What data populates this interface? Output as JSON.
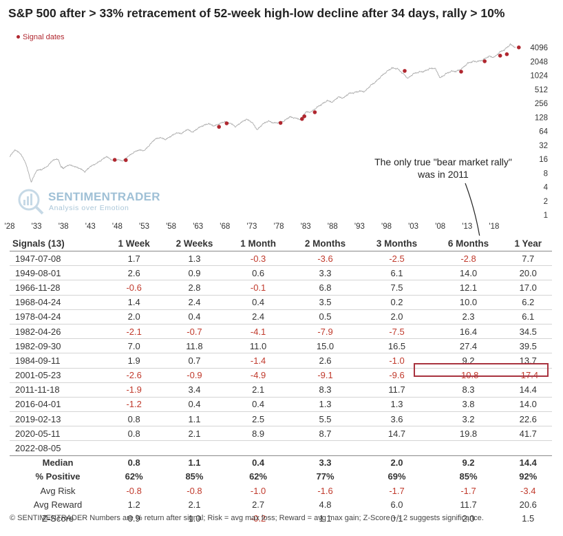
{
  "title": "S&P 500 after  > 33% retracement of 52-week high-low decline after 34 days, rally > 10%",
  "legend": {
    "label": "Signal dates",
    "color": "#b0272f"
  },
  "watermark": {
    "name": "SENTIMENTRADER",
    "tagline": "Analysis over Emotion"
  },
  "annotation": {
    "line1": "The only true \"bear market rally\"",
    "line2": "was in 2011"
  },
  "chart_data": {
    "type": "line",
    "title": "S&P 500 after  > 33% retracement of 52-week high-low decline after 34 days, rally > 10%",
    "y_scale": "log2",
    "ylim": [
      1,
      6000
    ],
    "y_ticks": [
      1,
      2,
      4,
      8,
      16,
      32,
      64,
      128,
      256,
      512,
      1024,
      2048,
      4096
    ],
    "xlim": [
      1928,
      2023
    ],
    "x_tick_values": [
      1928,
      1933,
      1938,
      1943,
      1948,
      1953,
      1958,
      1963,
      1968,
      1973,
      1978,
      1983,
      1988,
      1993,
      1998,
      2003,
      2008,
      2013,
      2018
    ],
    "x_tick_labels": [
      "'28",
      "'33",
      "'38",
      "'43",
      "'48",
      "'53",
      "'58",
      "'63",
      "'68",
      "'73",
      "'78",
      "'83",
      "'88",
      "'93",
      "'98",
      "'03",
      "'08",
      "'13",
      "'18"
    ],
    "series": [
      {
        "color": "#aaaaaa",
        "points": [
          [
            1928,
            18
          ],
          [
            1929,
            25
          ],
          [
            1930,
            21
          ],
          [
            1931,
            13
          ],
          [
            1932,
            5
          ],
          [
            1933,
            9
          ],
          [
            1934,
            9.5
          ],
          [
            1935,
            11
          ],
          [
            1936,
            15
          ],
          [
            1937,
            16
          ],
          [
            1937.5,
            11
          ],
          [
            1938,
            10
          ],
          [
            1939,
            12
          ],
          [
            1940,
            11
          ],
          [
            1941,
            10
          ],
          [
            1942,
            8.5
          ],
          [
            1943,
            11
          ],
          [
            1944,
            12.5
          ],
          [
            1945,
            15
          ],
          [
            1946,
            18
          ],
          [
            1947,
            15
          ],
          [
            1948,
            15.5
          ],
          [
            1949,
            14.5
          ],
          [
            1950,
            18
          ],
          [
            1951,
            22
          ],
          [
            1952,
            25
          ],
          [
            1953,
            24
          ],
          [
            1954,
            32
          ],
          [
            1955,
            43
          ],
          [
            1956,
            46
          ],
          [
            1957,
            42
          ],
          [
            1958,
            50
          ],
          [
            1959,
            58
          ],
          [
            1960,
            57
          ],
          [
            1961,
            70
          ],
          [
            1962,
            60
          ],
          [
            1963,
            74
          ],
          [
            1964,
            85
          ],
          [
            1965,
            92
          ],
          [
            1966,
            82
          ],
          [
            1967,
            93
          ],
          [
            1968,
            102
          ],
          [
            1969,
            94
          ],
          [
            1970,
            80
          ],
          [
            1971,
            98
          ],
          [
            1972,
            115
          ],
          [
            1973,
            100
          ],
          [
            1974,
            68
          ],
          [
            1975,
            90
          ],
          [
            1976,
            106
          ],
          [
            1977,
            96
          ],
          [
            1978,
            97
          ],
          [
            1979,
            106
          ],
          [
            1980,
            130
          ],
          [
            1981,
            122
          ],
          [
            1982,
            115
          ],
          [
            1983,
            165
          ],
          [
            1984,
            165
          ],
          [
            1985,
            205
          ],
          [
            1986,
            245
          ],
          [
            1987,
            290
          ],
          [
            1988,
            270
          ],
          [
            1989,
            350
          ],
          [
            1990,
            330
          ],
          [
            1991,
            415
          ],
          [
            1992,
            435
          ],
          [
            1993,
            465
          ],
          [
            1994,
            460
          ],
          [
            1995,
            615
          ],
          [
            1996,
            740
          ],
          [
            1997,
            970
          ],
          [
            1998,
            1230
          ],
          [
            1999,
            1470
          ],
          [
            2000,
            1430
          ],
          [
            2001,
            1150
          ],
          [
            2002,
            880
          ],
          [
            2003,
            1110
          ],
          [
            2004,
            1210
          ],
          [
            2005,
            1250
          ],
          [
            2006,
            1420
          ],
          [
            2007,
            1480
          ],
          [
            2008,
            900
          ],
          [
            2009,
            1100
          ],
          [
            2010,
            1260
          ],
          [
            2011,
            1260
          ],
          [
            2012,
            1420
          ],
          [
            2013,
            1850
          ],
          [
            2014,
            2060
          ],
          [
            2015,
            2040
          ],
          [
            2016,
            2240
          ],
          [
            2017,
            2670
          ],
          [
            2018,
            2510
          ],
          [
            2019,
            3230
          ],
          [
            2020,
            3750
          ],
          [
            2021,
            4760
          ],
          [
            2022,
            4150
          ]
        ]
      }
    ],
    "signal_points": [
      [
        1947.52,
        15.5
      ],
      [
        1949.58,
        15.3
      ],
      [
        1966.9,
        80
      ],
      [
        1968.31,
        95
      ],
      [
        1978.32,
        97
      ],
      [
        1982.32,
        118
      ],
      [
        1982.75,
        135
      ],
      [
        1984.69,
        165
      ],
      [
        2001.39,
        1290
      ],
      [
        2011.88,
        1240
      ],
      [
        2016.25,
        2080
      ],
      [
        2019.12,
        2750
      ],
      [
        2020.36,
        2950
      ],
      [
        2022.59,
        4150
      ]
    ],
    "signal_color": "#b0272f"
  },
  "table": {
    "headers": [
      "Signals (13)",
      "1 Week",
      "2 Weeks",
      "1 Month",
      "2 Months",
      "3 Months",
      "6 Months",
      "1 Year"
    ],
    "rows": [
      [
        "1947-07-08",
        "1.7",
        "1.3",
        "-0.3",
        "-3.6",
        "-2.5",
        "-2.8",
        "7.7"
      ],
      [
        "1949-08-01",
        "2.6",
        "0.9",
        "0.6",
        "3.3",
        "6.1",
        "14.0",
        "20.0"
      ],
      [
        "1966-11-28",
        "-0.6",
        "2.8",
        "-0.1",
        "6.8",
        "7.5",
        "12.1",
        "17.0"
      ],
      [
        "1968-04-24",
        "1.4",
        "2.4",
        "0.4",
        "3.5",
        "0.2",
        "10.0",
        "6.2"
      ],
      [
        "1978-04-24",
        "2.0",
        "0.4",
        "2.4",
        "0.5",
        "2.0",
        "2.3",
        "6.1"
      ],
      [
        "1982-04-26",
        "-2.1",
        "-0.7",
        "-4.1",
        "-7.9",
        "-7.5",
        "16.4",
        "34.5"
      ],
      [
        "1982-09-30",
        "7.0",
        "11.8",
        "11.0",
        "15.0",
        "16.5",
        "27.4",
        "39.5"
      ],
      [
        "1984-09-11",
        "1.9",
        "0.7",
        "-1.4",
        "2.6",
        "-1.0",
        "9.2",
        "13.7"
      ],
      [
        "2001-05-23",
        "-2.6",
        "-0.9",
        "-4.9",
        "-9.1",
        "-9.6",
        "-10.8",
        "-17.4"
      ],
      [
        "2011-11-18",
        "-1.9",
        "3.4",
        "2.1",
        "8.3",
        "11.7",
        "8.3",
        "14.4"
      ],
      [
        "2016-04-01",
        "-1.2",
        "0.4",
        "0.4",
        "1.3",
        "1.3",
        "3.8",
        "14.0"
      ],
      [
        "2019-02-13",
        "0.8",
        "1.1",
        "2.5",
        "5.5",
        "3.6",
        "3.2",
        "22.6"
      ],
      [
        "2020-05-11",
        "0.8",
        "2.1",
        "8.9",
        "8.7",
        "14.7",
        "19.8",
        "41.7"
      ],
      [
        "2022-08-05",
        "",
        "",
        "",
        "",
        "",
        "",
        ""
      ]
    ],
    "stats": [
      [
        "Median",
        "0.8",
        "1.1",
        "0.4",
        "3.3",
        "2.0",
        "9.2",
        "14.4"
      ],
      [
        "% Positive",
        "62%",
        "85%",
        "62%",
        "77%",
        "69%",
        "85%",
        "92%"
      ],
      [
        "Avg Risk",
        "-0.8",
        "-0.8",
        "-1.0",
        "-1.6",
        "-1.7",
        "-1.7",
        "-3.4"
      ],
      [
        "Avg Reward",
        "1.2",
        "2.1",
        "2.7",
        "4.8",
        "6.0",
        "11.7",
        "20.6"
      ],
      [
        "Z-Score",
        "0.9",
        "1.0",
        "-0.2",
        "1.1",
        "0.1",
        "2.0",
        "1.5"
      ]
    ]
  },
  "footnote": "© SENTIMENTRADER  Numbers are % return after signal; Risk = avg max loss; Reward = avg max gain; Z-Score +/- 2 suggests significance."
}
